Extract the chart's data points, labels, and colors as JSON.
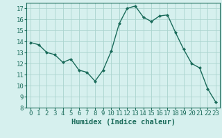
{
  "x": [
    0,
    1,
    2,
    3,
    4,
    5,
    6,
    7,
    8,
    9,
    10,
    11,
    12,
    13,
    14,
    15,
    16,
    17,
    18,
    19,
    20,
    21,
    22,
    23
  ],
  "y": [
    13.9,
    13.7,
    13.0,
    12.8,
    12.1,
    12.4,
    11.4,
    11.2,
    10.4,
    11.4,
    13.1,
    15.6,
    17.0,
    17.2,
    16.2,
    15.8,
    16.3,
    16.4,
    14.8,
    13.3,
    12.0,
    11.6,
    9.7,
    8.5
  ],
  "line_color": "#1a6b5a",
  "marker": "D",
  "marker_size": 2.0,
  "bg_color": "#d6f0ee",
  "grid_color": "#aad4ce",
  "xlabel": "Humidex (Indice chaleur)",
  "ylim": [
    8,
    17.5
  ],
  "xlim": [
    -0.5,
    23.5
  ],
  "yticks": [
    8,
    9,
    10,
    11,
    12,
    13,
    14,
    15,
    16,
    17
  ],
  "xticks": [
    0,
    1,
    2,
    3,
    4,
    5,
    6,
    7,
    8,
    9,
    10,
    11,
    12,
    13,
    14,
    15,
    16,
    17,
    18,
    19,
    20,
    21,
    22,
    23
  ],
  "tick_fontsize": 6.5,
  "label_fontsize": 7.5
}
